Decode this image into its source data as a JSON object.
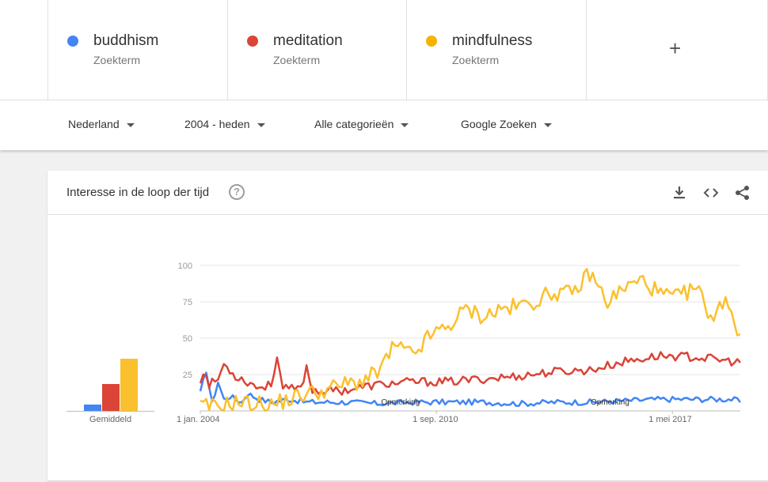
{
  "terms": [
    {
      "name": "buddhism",
      "type": "Zoekterm",
      "color": "#4285f4"
    },
    {
      "name": "meditation",
      "type": "Zoekterm",
      "color": "#db4437"
    },
    {
      "name": "mindfulness",
      "type": "Zoekterm",
      "color": "#f4b400"
    }
  ],
  "add_term": {
    "symbol": "+",
    "icon": "plus-icon"
  },
  "filters": {
    "region": "Nederland",
    "period": "2004 - heden",
    "category": "Alle categorieën",
    "property": "Google Zoeken"
  },
  "card": {
    "title": "Interesse in de loop der tijd",
    "help_symbol": "?",
    "icons": [
      "download-icon",
      "embed-icon",
      "share-icon"
    ]
  },
  "average": {
    "label": "Gemiddeld",
    "values": {
      "buddhism": 6,
      "meditation": 24,
      "mindfulness": 47
    }
  },
  "chart_data": {
    "type": "line",
    "x_range": [
      "2004-01",
      "2019-04"
    ],
    "x_tick_labels": [
      "1 jan. 2004",
      "1 sep. 2010",
      "1 mei 2017"
    ],
    "y_ticks": [
      25,
      50,
      75,
      100
    ],
    "ylim": [
      0,
      100
    ],
    "annotations": [
      "Opmerking",
      "Opmerking"
    ],
    "series": [
      {
        "name": "buddhism",
        "color": "#4285f4",
        "keypoints": [
          [
            0,
            12
          ],
          [
            2,
            28
          ],
          [
            4,
            5
          ],
          [
            6,
            20
          ],
          [
            8,
            8
          ],
          [
            10,
            10
          ],
          [
            14,
            6
          ],
          [
            16,
            12
          ],
          [
            20,
            8
          ],
          [
            24,
            6
          ],
          [
            30,
            8
          ],
          [
            36,
            6
          ],
          [
            48,
            6
          ],
          [
            60,
            5
          ],
          [
            72,
            6
          ],
          [
            84,
            6
          ],
          [
            96,
            6
          ],
          [
            108,
            5
          ],
          [
            120,
            6
          ],
          [
            132,
            6
          ],
          [
            144,
            7
          ],
          [
            156,
            8
          ],
          [
            168,
            8
          ],
          [
            180,
            8
          ],
          [
            182,
            7
          ],
          [
            183,
            6
          ]
        ]
      },
      {
        "name": "meditation",
        "color": "#db4437",
        "keypoints": [
          [
            0,
            20
          ],
          [
            1,
            28
          ],
          [
            3,
            18
          ],
          [
            6,
            22
          ],
          [
            8,
            32
          ],
          [
            10,
            28
          ],
          [
            12,
            24
          ],
          [
            16,
            20
          ],
          [
            20,
            16
          ],
          [
            24,
            18
          ],
          [
            26,
            38
          ],
          [
            28,
            15
          ],
          [
            34,
            15
          ],
          [
            36,
            30
          ],
          [
            38,
            14
          ],
          [
            48,
            14
          ],
          [
            60,
            18
          ],
          [
            72,
            20
          ],
          [
            84,
            20
          ],
          [
            96,
            22
          ],
          [
            108,
            24
          ],
          [
            120,
            27
          ],
          [
            132,
            28
          ],
          [
            144,
            34
          ],
          [
            156,
            38
          ],
          [
            168,
            37
          ],
          [
            180,
            34
          ],
          [
            183,
            33
          ]
        ]
      },
      {
        "name": "mindfulness",
        "color": "#fbc02d",
        "keypoints": [
          [
            0,
            3
          ],
          [
            6,
            3
          ],
          [
            12,
            6
          ],
          [
            24,
            4
          ],
          [
            30,
            8
          ],
          [
            36,
            12
          ],
          [
            42,
            14
          ],
          [
            48,
            18
          ],
          [
            54,
            20
          ],
          [
            60,
            26
          ],
          [
            66,
            45
          ],
          [
            72,
            38
          ],
          [
            78,
            52
          ],
          [
            84,
            58
          ],
          [
            90,
            70
          ],
          [
            96,
            65
          ],
          [
            102,
            70
          ],
          [
            108,
            72
          ],
          [
            114,
            76
          ],
          [
            120,
            82
          ],
          [
            126,
            80
          ],
          [
            132,
            95
          ],
          [
            138,
            75
          ],
          [
            144,
            85
          ],
          [
            150,
            90
          ],
          [
            156,
            80
          ],
          [
            162,
            78
          ],
          [
            168,
            85
          ],
          [
            174,
            62
          ],
          [
            178,
            80
          ],
          [
            182,
            55
          ],
          [
            183,
            54
          ]
        ]
      }
    ]
  }
}
